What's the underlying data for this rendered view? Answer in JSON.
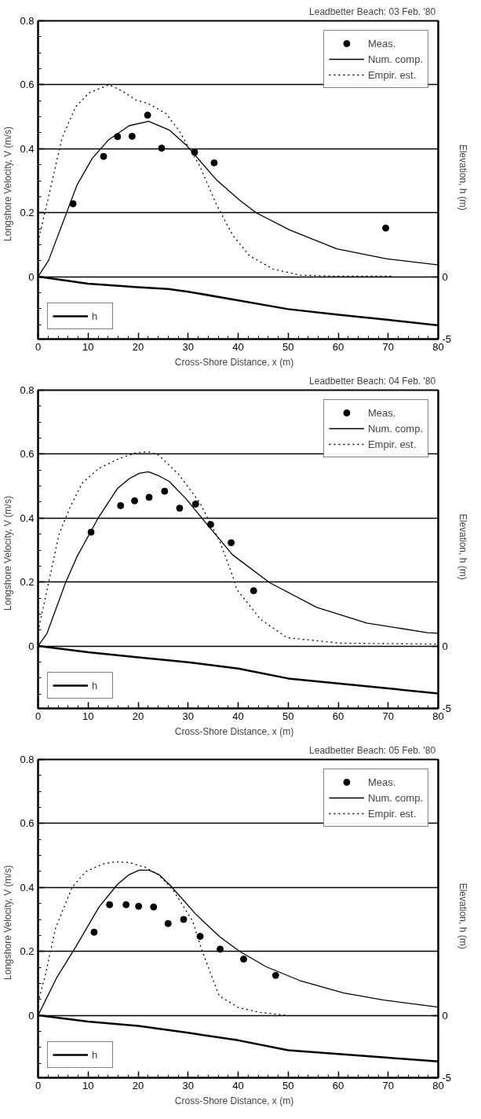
{
  "chart_data": [
    {
      "type": "line",
      "title": "Leadbetter  Beach: 03 Feb. '80",
      "xlabel": "Cross-Shore  Distance,   x (m)",
      "ylabel": "Longshore  Velocity,   V (m/s)",
      "y2label": "Elevation,   h (m)",
      "xlim": [
        0,
        80
      ],
      "ylim": [
        -0.195,
        0.8
      ],
      "y2lim": [
        -5,
        20.5
      ],
      "xticks": [
        0,
        10,
        20,
        30,
        40,
        50,
        60,
        70,
        80
      ],
      "yticks": [
        0,
        0.2,
        0.4,
        0.6,
        0.8
      ],
      "y2ticks": [
        -5,
        0
      ],
      "grid": "y",
      "legend": "top right",
      "series": [
        {
          "name": "Meas.",
          "type": "scatter",
          "marker": "circle",
          "color": "#000000",
          "x": [
            7.0,
            13.1,
            15.9,
            18.8,
            21.9,
            24.7,
            31.3,
            35.2,
            69.5
          ],
          "values": [
            0.228,
            0.376,
            0.438,
            0.439,
            0.505,
            0.402,
            0.389,
            0.356,
            0.152
          ]
        },
        {
          "name": "Num. comp.",
          "line_style": "solid",
          "color": "#000000",
          "x": [
            0,
            2.1,
            7.8,
            10.8,
            14.1,
            18.2,
            22.1,
            26.2,
            29.6,
            35.6,
            40.3,
            43.6,
            50.3,
            59.7,
            69.7,
            80
          ],
          "values": [
            0,
            0.051,
            0.287,
            0.369,
            0.428,
            0.472,
            0.486,
            0.459,
            0.412,
            0.304,
            0.239,
            0.2,
            0.146,
            0.087,
            0.056,
            0.037
          ]
        },
        {
          "name": "Empir. est.",
          "line_style": "dotted",
          "color": "#000000",
          "x": [
            0,
            2.1,
            4.8,
            7.5,
            10.2,
            14.2,
            16.9,
            19.5,
            21.9,
            25.6,
            28.2,
            32.3,
            35.6,
            38.9,
            42.3,
            47,
            52.3,
            59,
            70.7
          ],
          "values": [
            0.108,
            0.25,
            0.434,
            0.531,
            0.575,
            0.6,
            0.58,
            0.553,
            0.542,
            0.51,
            0.456,
            0.347,
            0.228,
            0.13,
            0.065,
            0.024,
            0.005,
            0.002,
            0.002
          ]
        },
        {
          "name": "h",
          "axis": "y2",
          "line_style": "solid",
          "color": "#000000",
          "x": [
            0,
            10,
            20,
            26,
            30,
            40,
            50,
            60,
            70,
            80
          ],
          "values": [
            0,
            -0.56,
            -0.85,
            -0.98,
            -1.2,
            -1.9,
            -2.6,
            -3.05,
            -3.46,
            -3.9
          ]
        }
      ]
    },
    {
      "type": "line",
      "title": "Leadbetter  Beach: 04 Feb. '80",
      "xlabel": "Cross-Shore  Distance,   x (m)",
      "ylabel": "Longshore  Velocity,   V (m/s)",
      "y2label": "Elevation,   h (m)",
      "xlim": [
        0,
        80
      ],
      "ylim": [
        -0.195,
        0.8
      ],
      "y2lim": [
        -5,
        20.5
      ],
      "xticks": [
        0,
        10,
        20,
        30,
        40,
        50,
        60,
        70,
        80
      ],
      "yticks": [
        0,
        0.2,
        0.4,
        0.6,
        0.8
      ],
      "y2ticks": [
        -5,
        0
      ],
      "grid": "y",
      "legend": "top right",
      "series": [
        {
          "name": "Meas.",
          "type": "scatter",
          "marker": "circle",
          "color": "#000000",
          "x": [
            10.6,
            16.5,
            19.3,
            22.2,
            25.3,
            28.3,
            31.5,
            34.5,
            38.6,
            43.1
          ],
          "values": [
            0.356,
            0.439,
            0.454,
            0.465,
            0.484,
            0.431,
            0.444,
            0.38,
            0.323,
            0.173
          ]
        },
        {
          "name": "Num. comp.",
          "line_style": "solid",
          "color": "#000000",
          "x": [
            0,
            1.8,
            5.5,
            7.8,
            12.2,
            15.9,
            18.2,
            20.2,
            22.1,
            23.9,
            26.2,
            29.6,
            33.6,
            38.9,
            46.3,
            55.7,
            65.7,
            77.8,
            80
          ],
          "values": [
            0,
            0.04,
            0.198,
            0.28,
            0.405,
            0.493,
            0.523,
            0.54,
            0.545,
            0.534,
            0.515,
            0.46,
            0.384,
            0.285,
            0.198,
            0.121,
            0.072,
            0.042,
            0.04
          ]
        },
        {
          "name": "Empir. est.",
          "line_style": "dotted",
          "color": "#000000",
          "x": [
            0,
            2.1,
            4.2,
            6.2,
            8.8,
            12.2,
            16.2,
            19.5,
            22.1,
            24.1,
            28.1,
            32.3,
            36.3,
            38.9,
            39.7,
            44.5,
            49.8,
            60.4,
            80
          ],
          "values": [
            0.045,
            0.198,
            0.35,
            0.427,
            0.509,
            0.556,
            0.586,
            0.604,
            0.607,
            0.597,
            0.537,
            0.449,
            0.328,
            0.219,
            0.178,
            0.083,
            0.026,
            0.009,
            0.006
          ]
        },
        {
          "name": "h",
          "axis": "y2",
          "line_style": "solid",
          "color": "#000000",
          "x": [
            0,
            10,
            20,
            30,
            40,
            50,
            60,
            70,
            80
          ],
          "values": [
            0,
            -0.5,
            -0.9,
            -1.3,
            -1.8,
            -2.6,
            -3.0,
            -3.4,
            -3.8
          ]
        }
      ]
    },
    {
      "type": "line",
      "title": "Leadbetter  Beach: 05 Feb. '80",
      "xlabel": "Cross-Shore  Distance,   x (m)",
      "ylabel": "Longshore  Velocity,   V (m/s)",
      "y2label": "Elevation,   h (m)",
      "xlim": [
        0,
        80
      ],
      "ylim": [
        -0.195,
        0.8
      ],
      "y2lim": [
        -5,
        20.5
      ],
      "xticks": [
        0,
        10,
        20,
        30,
        40,
        50,
        60,
        70,
        80
      ],
      "yticks": [
        0,
        0.2,
        0.4,
        0.6,
        0.8
      ],
      "y2ticks": [
        -5,
        0
      ],
      "grid": "y",
      "legend": "top right",
      "series": [
        {
          "name": "Meas.",
          "type": "scatter",
          "marker": "circle",
          "color": "#000000",
          "x": [
            11.2,
            14.3,
            17.6,
            20.1,
            23.1,
            26.0,
            29.1,
            32.4,
            36.4,
            41.1,
            47.5
          ],
          "values": [
            0.26,
            0.346,
            0.346,
            0.341,
            0.339,
            0.287,
            0.3,
            0.247,
            0.207,
            0.176,
            0.125
          ]
        },
        {
          "name": "Num. comp.",
          "line_style": "solid",
          "color": "#000000",
          "x": [
            0,
            3.8,
            7.5,
            12.2,
            15.9,
            18.2,
            20.2,
            22.2,
            24.2,
            26.5,
            31.5,
            36.3,
            40.3,
            45.6,
            52.3,
            61.1,
            69.1,
            80
          ],
          "values": [
            0,
            0.12,
            0.213,
            0.339,
            0.41,
            0.44,
            0.454,
            0.454,
            0.44,
            0.405,
            0.317,
            0.246,
            0.2,
            0.152,
            0.109,
            0.07,
            0.048,
            0.026
          ]
        },
        {
          "name": "Empir. est.",
          "line_style": "dotted",
          "color": "#000000",
          "x": [
            0,
            1.5,
            3.5,
            6.8,
            9.5,
            12.9,
            15.5,
            18.2,
            21.6,
            24.2,
            26.9,
            30.9,
            32.7,
            36.2,
            40,
            44,
            48,
            50
          ],
          "values": [
            0.04,
            0.13,
            0.273,
            0.4,
            0.449,
            0.473,
            0.48,
            0.478,
            0.462,
            0.438,
            0.394,
            0.295,
            0.206,
            0.061,
            0.025,
            0.01,
            0.003,
            0.0
          ]
        },
        {
          "name": "h",
          "axis": "y2",
          "line_style": "solid",
          "color": "#000000",
          "x": [
            0,
            10,
            20,
            30,
            40,
            50,
            60,
            70,
            80
          ],
          "values": [
            0,
            -0.5,
            -0.85,
            -1.4,
            -2.0,
            -2.8,
            -3.1,
            -3.4,
            -3.7
          ]
        }
      ]
    }
  ]
}
